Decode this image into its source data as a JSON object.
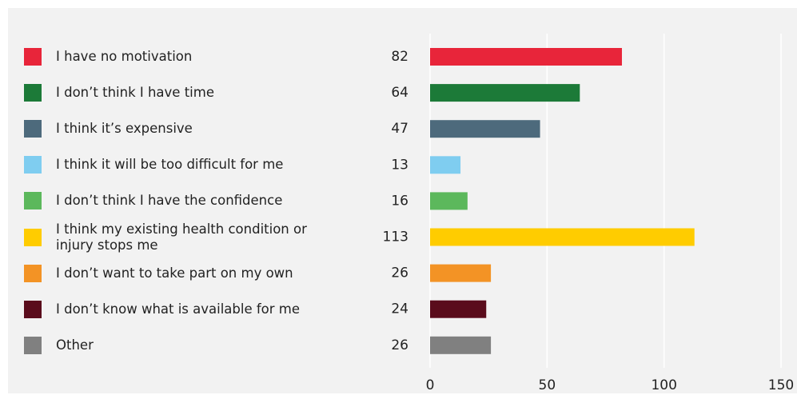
{
  "chart_data": {
    "type": "bar",
    "orientation": "horizontal",
    "categories": [
      "I have no motivation",
      "I don’t think I have time",
      "I think it’s expensive",
      "I think it will be too difficult for me",
      "I don’t think I have the confidence",
      "I think my existing health condition or injury stops me",
      "I don’t want to take part on my own",
      "I don’t know what is available for me",
      "Other"
    ],
    "values": [
      82,
      64,
      47,
      13,
      16,
      113,
      26,
      24,
      26
    ],
    "colors": [
      "#e8253a",
      "#1c7a38",
      "#4d6a7c",
      "#7fcdf0",
      "#5cb85c",
      "#ffcc00",
      "#f39325",
      "#5a0c1c",
      "#808080"
    ],
    "xlim": [
      0,
      150
    ],
    "xticks": [
      0,
      50,
      100,
      150
    ],
    "grid": true
  }
}
